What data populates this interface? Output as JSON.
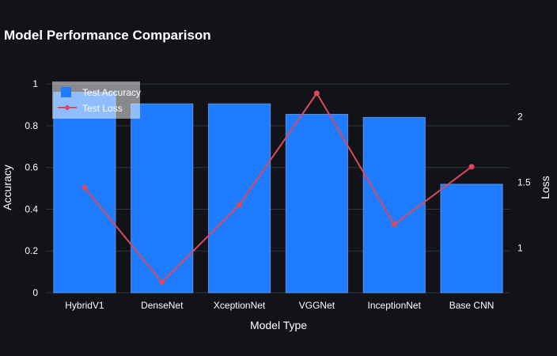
{
  "chart_data": {
    "type": "bar",
    "title": "Model Performance Comparison",
    "xlabel": "Model Type",
    "ylabel": "Accuracy",
    "y2label": "Loss",
    "categories": [
      "HybridV1",
      "DenseNet",
      "XceptionNet",
      "VGGNet",
      "InceptionNet",
      "Base CNN"
    ],
    "series": [
      {
        "name": "Test Accuracy",
        "type": "bar",
        "axis": "y",
        "color": "#1f7bff",
        "values": [
          0.96,
          0.905,
          0.905,
          0.855,
          0.84,
          0.52
        ]
      },
      {
        "name": "Test Loss",
        "type": "line",
        "axis": "y2",
        "color": "#d94a5c",
        "values": [
          1.46,
          0.74,
          1.33,
          2.18,
          1.18,
          1.62
        ]
      }
    ],
    "ylim": [
      0,
      1.05
    ],
    "yticks": [
      0,
      0.2,
      0.4,
      0.6,
      0.8,
      1
    ],
    "ytick_labels": [
      "0",
      "0.2",
      "0.4",
      "0.6",
      "0.8",
      "1"
    ],
    "y2lim": [
      0.66,
      2.33
    ],
    "y2ticks": [
      1,
      1.5,
      2
    ],
    "y2tick_labels": [
      "1",
      "1.5",
      "2"
    ],
    "grid": true,
    "legend_position": "top-left",
    "background": "#111319",
    "grid_color": "#2f3440"
  }
}
